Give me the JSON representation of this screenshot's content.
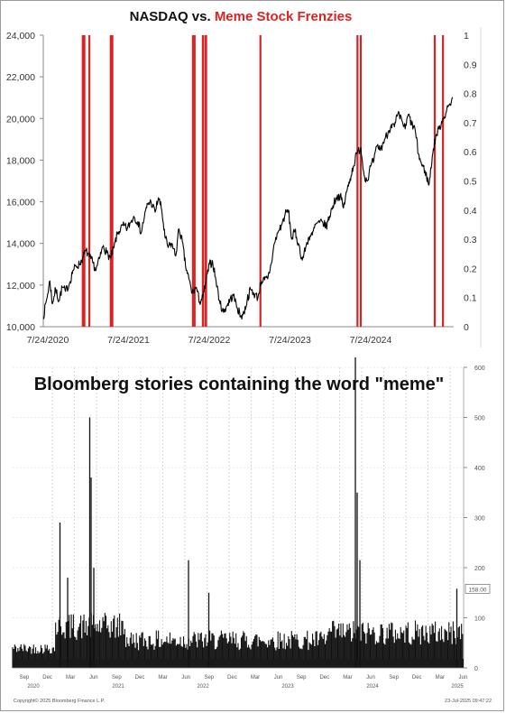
{
  "chart_data": [
    {
      "type": "line",
      "title_parts": [
        {
          "text": "NASDAQ vs. ",
          "color": "#111111"
        },
        {
          "text": "Meme Stock Frenzies",
          "color": "#dd2222"
        }
      ],
      "x_tick_labels": [
        "7/24/2020",
        "7/24/2021",
        "7/24/2022",
        "7/24/2023",
        "7/24/2024"
      ],
      "y_left_ticks": [
        "24,000",
        "22,000",
        "20,000",
        "18,000",
        "16,000",
        "14,000",
        "12,000",
        "10,000"
      ],
      "y_right_ticks": [
        "1",
        "0.9",
        "0.8",
        "0.7",
        "0.6",
        "0.5",
        "0.4",
        "0.3",
        "0.2",
        "0.1",
        "0"
      ],
      "ylim_left": [
        10000,
        24000
      ],
      "ylim_right": [
        0,
        1
      ],
      "xlim": [
        2020.56,
        2025.55
      ],
      "series": [
        {
          "color": "#000000",
          "points": [
            [
              2020.56,
              10450
            ],
            [
              2020.6,
              11300
            ],
            [
              2020.64,
              12200
            ],
            [
              2020.67,
              11100
            ],
            [
              2020.71,
              11800
            ],
            [
              2020.75,
              11250
            ],
            [
              2020.79,
              11900
            ],
            [
              2020.83,
              11700
            ],
            [
              2020.88,
              12100
            ],
            [
              2020.92,
              12700
            ],
            [
              2020.96,
              12900
            ],
            [
              2021.0,
              13000
            ],
            [
              2021.04,
              13300
            ],
            [
              2021.08,
              13650
            ],
            [
              2021.12,
              13350
            ],
            [
              2021.16,
              13100
            ],
            [
              2021.2,
              12700
            ],
            [
              2021.25,
              13350
            ],
            [
              2021.29,
              13900
            ],
            [
              2021.33,
              13550
            ],
            [
              2021.38,
              13300
            ],
            [
              2021.42,
              13800
            ],
            [
              2021.46,
              14450
            ],
            [
              2021.5,
              14700
            ],
            [
              2021.54,
              14850
            ],
            [
              2021.58,
              14700
            ],
            [
              2021.62,
              15000
            ],
            [
              2021.66,
              15300
            ],
            [
              2021.71,
              15050
            ],
            [
              2021.75,
              14500
            ],
            [
              2021.79,
              15300
            ],
            [
              2021.83,
              15900
            ],
            [
              2021.87,
              16000
            ],
            [
              2021.92,
              15500
            ],
            [
              2021.96,
              16200
            ],
            [
              2022.0,
              15600
            ],
            [
              2022.04,
              14300
            ],
            [
              2022.08,
              13800
            ],
            [
              2022.12,
              14000
            ],
            [
              2022.17,
              13400
            ],
            [
              2022.21,
              14700
            ],
            [
              2022.25,
              14100
            ],
            [
              2022.29,
              12900
            ],
            [
              2022.33,
              12300
            ],
            [
              2022.37,
              11600
            ],
            [
              2022.42,
              11900
            ],
            [
              2022.46,
              11200
            ],
            [
              2022.5,
              11400
            ],
            [
              2022.54,
              12200
            ],
            [
              2022.58,
              13000
            ],
            [
              2022.62,
              13100
            ],
            [
              2022.66,
              12200
            ],
            [
              2022.71,
              11100
            ],
            [
              2022.75,
              10700
            ],
            [
              2022.79,
              11000
            ],
            [
              2022.83,
              11300
            ],
            [
              2022.87,
              11500
            ],
            [
              2022.92,
              10900
            ],
            [
              2022.96,
              10500
            ],
            [
              2023.0,
              10650
            ],
            [
              2023.04,
              11300
            ],
            [
              2023.08,
              11800
            ],
            [
              2023.12,
              11600
            ],
            [
              2023.17,
              11400
            ],
            [
              2023.21,
              12200
            ],
            [
              2023.25,
              12250
            ],
            [
              2023.29,
              12300
            ],
            [
              2023.33,
              13000
            ],
            [
              2023.37,
              14000
            ],
            [
              2023.42,
              14600
            ],
            [
              2023.46,
              14900
            ],
            [
              2023.5,
              15400
            ],
            [
              2023.54,
              15600
            ],
            [
              2023.58,
              14200
            ],
            [
              2023.62,
              14600
            ],
            [
              2023.66,
              14000
            ],
            [
              2023.71,
              13200
            ],
            [
              2023.75,
              13800
            ],
            [
              2023.79,
              14300
            ],
            [
              2023.83,
              14400
            ],
            [
              2023.87,
              14900
            ],
            [
              2023.92,
              15000
            ],
            [
              2023.96,
              15000
            ],
            [
              2024.0,
              14800
            ],
            [
              2024.04,
              15300
            ],
            [
              2024.08,
              15800
            ],
            [
              2024.12,
              16200
            ],
            [
              2024.17,
              16300
            ],
            [
              2024.21,
              15700
            ],
            [
              2024.25,
              16500
            ],
            [
              2024.29,
              17100
            ],
            [
              2024.33,
              17700
            ],
            [
              2024.37,
              18300
            ],
            [
              2024.42,
              18600
            ],
            [
              2024.46,
              17300
            ],
            [
              2024.5,
              17000
            ],
            [
              2024.54,
              17700
            ],
            [
              2024.58,
              18000
            ],
            [
              2024.62,
              18700
            ],
            [
              2024.66,
              18500
            ],
            [
              2024.71,
              19000
            ],
            [
              2024.75,
              19300
            ],
            [
              2024.79,
              19700
            ],
            [
              2024.83,
              19600
            ],
            [
              2024.87,
              20200
            ],
            [
              2024.92,
              19900
            ],
            [
              2024.96,
              19500
            ],
            [
              2025.0,
              20200
            ],
            [
              2025.04,
              19700
            ],
            [
              2025.08,
              19500
            ],
            [
              2025.12,
              18300
            ],
            [
              2025.16,
              17800
            ],
            [
              2025.2,
              17500
            ],
            [
              2025.25,
              16800
            ],
            [
              2025.29,
              18200
            ],
            [
              2025.33,
              19100
            ],
            [
              2025.37,
              19500
            ],
            [
              2025.42,
              20000
            ],
            [
              2025.46,
              20300
            ],
            [
              2025.5,
              20700
            ],
            [
              2025.54,
              21000
            ]
          ]
        }
      ],
      "highlight_dates": [
        2021.04,
        2021.06,
        2021.12,
        2021.38,
        2021.4,
        2022.38,
        2022.4,
        2022.5,
        2022.53,
        2022.54,
        2023.2,
        2024.38,
        2024.42,
        2025.32,
        2025.42
      ],
      "highlight_color": "#dd2222"
    },
    {
      "type": "bar",
      "title": "Bloomberg stories containing the word \"meme\"",
      "y_ticks": [
        "600",
        "500",
        "400",
        "300",
        "200",
        "100",
        "0"
      ],
      "ylim": [
        0,
        600
      ],
      "last_value_label": "158.00",
      "x_month_labels": [
        "Sep",
        "Dec",
        "Mar",
        "Jun",
        "Sep",
        "Dec",
        "Mar",
        "Jun",
        "Sep",
        "Dec",
        "Mar",
        "Jun",
        "Sep",
        "Dec",
        "Mar",
        "Jun",
        "Sep",
        "Dec",
        "Mar",
        "Jun",
        "Sep",
        "Dec",
        "Mar",
        "Jun"
      ],
      "x_year_labels": [
        "2020",
        "2021",
        "2022",
        "2023",
        "2024",
        "2025"
      ],
      "spikes": [
        {
          "frac": 0.105,
          "value": 290
        },
        {
          "frac": 0.122,
          "value": 180
        },
        {
          "frac": 0.171,
          "value": 500
        },
        {
          "frac": 0.174,
          "value": 380
        },
        {
          "frac": 0.18,
          "value": 200
        },
        {
          "frac": 0.39,
          "value": 215
        },
        {
          "frac": 0.435,
          "value": 150
        },
        {
          "frac": 0.76,
          "value": 660
        },
        {
          "frac": 0.764,
          "value": 350
        },
        {
          "frac": 0.77,
          "value": 215
        },
        {
          "frac": 0.985,
          "value": 158
        }
      ],
      "footer_left": "Copyright© 2025 Bloomberg Finance L.P.",
      "footer_right": "23-Jul-2025 09:47:22"
    }
  ]
}
